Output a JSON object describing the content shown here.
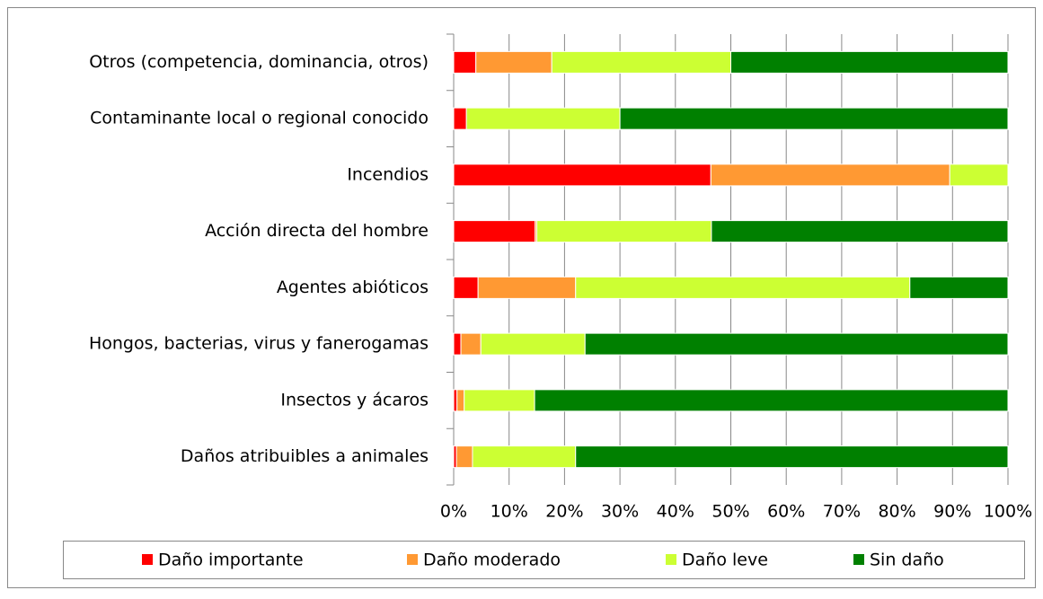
{
  "chart_data": {
    "type": "stacked-barh",
    "categories": [
      "Otros (competencia, dominancia, otros)",
      "Contaminante local o regional conocido",
      "Incendios",
      "Acción directa del hombre",
      "Agentes abióticos",
      "Hongos, bacterias, virus y fanerogamas",
      "Insectos y ácaros",
      "Daños atribuibles a animales"
    ],
    "series": [
      {
        "name": "Daño importante",
        "color": "#ff0000",
        "values": [
          4.0,
          2.3,
          46.4,
          14.7,
          4.4,
          1.3,
          0.6,
          0.5
        ]
      },
      {
        "name": "Daño moderado",
        "color": "#ff9933",
        "values": [
          13.7,
          0,
          43.1,
          0.3,
          17.6,
          3.6,
          1.3,
          2.9
        ]
      },
      {
        "name": "Daño leve",
        "color": "#ccff33",
        "values": [
          32.3,
          27.7,
          10.5,
          31.5,
          60.3,
          18.8,
          12.7,
          18.6
        ]
      },
      {
        "name": "Sin daño",
        "color": "#008000",
        "values": [
          50.0,
          70.0,
          0,
          53.5,
          17.7,
          76.3,
          85.4,
          78.0
        ]
      }
    ],
    "xlim": [
      0,
      100
    ],
    "xticks": [
      {
        "value": 0,
        "label": "0%"
      },
      {
        "value": 10,
        "label": "10%"
      },
      {
        "value": 20,
        "label": "20%"
      },
      {
        "value": 30,
        "label": "30%"
      },
      {
        "value": 40,
        "label": "40%"
      },
      {
        "value": 50,
        "label": "50%"
      },
      {
        "value": 60,
        "label": "60%"
      },
      {
        "value": 70,
        "label": "70%"
      },
      {
        "value": 80,
        "label": "80%"
      },
      {
        "value": 90,
        "label": "90%"
      },
      {
        "value": 100,
        "label": "100%"
      }
    ],
    "grid": true,
    "legend": "bottom"
  }
}
